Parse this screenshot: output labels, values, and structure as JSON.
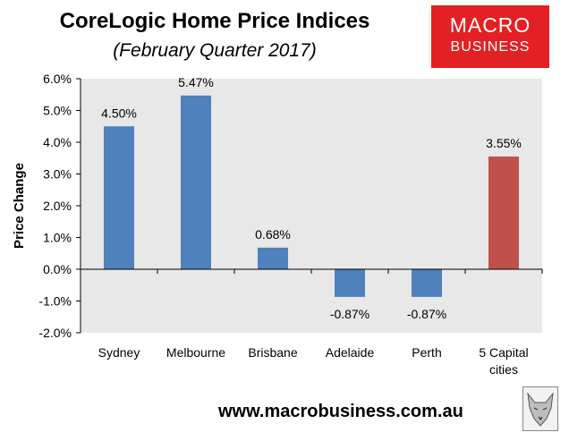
{
  "header": {
    "title": "CoreLogic Home Price Indices",
    "subtitle": "(February Quarter 2017)"
  },
  "logo": {
    "line1": "MACRO",
    "line2": "BUSINESS"
  },
  "footer": {
    "url": "www.macrobusiness.com.au"
  },
  "colors": {
    "bar_default": "#4f81bd",
    "bar_highlight": "#c0504d",
    "plot_bg": "#e8e8e8",
    "logo_bg": "#e32024"
  },
  "chart_data": {
    "type": "bar",
    "title": "CoreLogic Home Price Indices",
    "subtitle": "(February Quarter 2017)",
    "xlabel": "",
    "ylabel": "Price Change",
    "ylim": [
      -2.0,
      6.0
    ],
    "yticks": [
      -2.0,
      -1.0,
      0.0,
      1.0,
      2.0,
      3.0,
      4.0,
      5.0,
      6.0
    ],
    "ytick_labels": [
      "-2.0%",
      "-1.0%",
      "0.0%",
      "1.0%",
      "2.0%",
      "3.0%",
      "4.0%",
      "5.0%",
      "6.0%"
    ],
    "categories": [
      "Sydney",
      "Melbourne",
      "Brisbane",
      "Adelaide",
      "Perth",
      "5 Capital cities"
    ],
    "values": [
      4.5,
      5.47,
      0.68,
      -0.87,
      -0.87,
      3.55
    ],
    "data_labels": [
      "4.50%",
      "5.47%",
      "0.68%",
      "-0.87%",
      "-0.87%",
      "3.55%"
    ],
    "bar_colors": [
      "#4f81bd",
      "#4f81bd",
      "#4f81bd",
      "#4f81bd",
      "#4f81bd",
      "#c0504d"
    ],
    "grid": false,
    "legend": "none"
  }
}
